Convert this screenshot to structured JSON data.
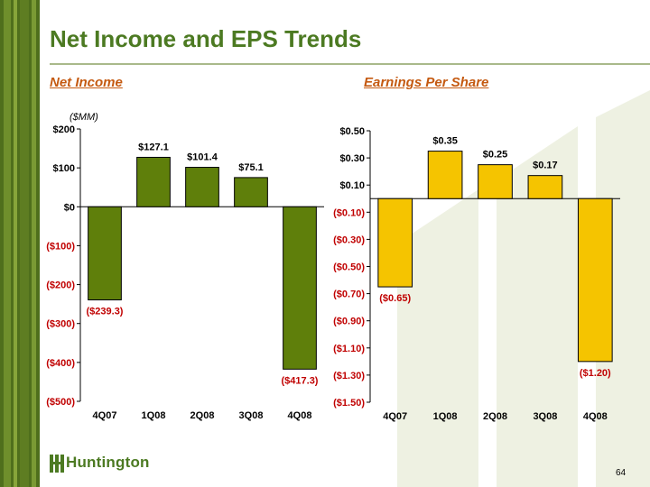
{
  "slide": {
    "title": "Net Income and EPS Trends",
    "page_number": "64",
    "logo_text": "Huntington"
  },
  "colors": {
    "brand_green": "#4c7a22",
    "ni_bar": "#5f7f0b",
    "eps_bar": "#f5c400",
    "negative_label": "#c00000",
    "subtitle": "#c55a11"
  },
  "chart_data": [
    {
      "type": "bar",
      "subtitle": "Net Income",
      "units": "($MM)",
      "categories": [
        "4Q07",
        "1Q08",
        "2Q08",
        "3Q08",
        "4Q08"
      ],
      "values": [
        -239.3,
        127.1,
        101.4,
        75.1,
        -417.3
      ],
      "data_labels": [
        "($239.3)",
        "$127.1",
        "$101.4",
        "$75.1",
        "($417.3)"
      ],
      "y_ticks": [
        200,
        100,
        0,
        -100,
        -200,
        -300,
        -400,
        -500
      ],
      "y_tick_labels": [
        "$200",
        "$100",
        "$0",
        "($100)",
        "($200)",
        "($300)",
        "($400)",
        "($500)"
      ],
      "ylim": [
        -500,
        200
      ],
      "grid": false,
      "bar_color": "#5f7f0b"
    },
    {
      "type": "bar",
      "subtitle": "Earnings Per Share",
      "categories": [
        "4Q07",
        "1Q08",
        "2Q08",
        "3Q08",
        "4Q08"
      ],
      "values": [
        -0.65,
        0.35,
        0.25,
        0.17,
        -1.2
      ],
      "data_labels": [
        "($0.65)",
        "$0.35",
        "$0.25",
        "$0.17",
        "($1.20)"
      ],
      "y_ticks": [
        0.5,
        0.3,
        0.1,
        -0.1,
        -0.3,
        -0.5,
        -0.7,
        -0.9,
        -1.1,
        -1.3,
        -1.5
      ],
      "y_tick_labels": [
        "$0.50",
        "$0.30",
        "$0.10",
        "($0.10)",
        "($0.30)",
        "($0.50)",
        "($0.70)",
        "($0.90)",
        "($1.10)",
        "($1.30)",
        "($1.50)"
      ],
      "ylim": [
        -1.5,
        0.5
      ],
      "grid": false,
      "bar_color": "#f5c400"
    }
  ]
}
